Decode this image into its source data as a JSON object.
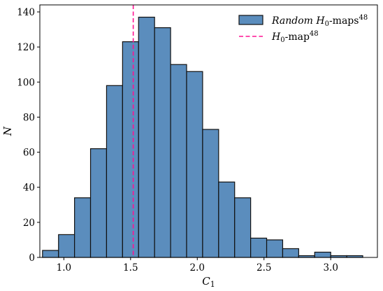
{
  "chart_data": {
    "type": "bar",
    "subtype": "histogram",
    "xlabel": "C",
    "xlabel_sub": "1",
    "ylabel": "N",
    "xlim": [
      0.82,
      3.35
    ],
    "ylim": [
      0,
      144
    ],
    "xticks": [
      1.0,
      1.5,
      2.0,
      2.5,
      3.0
    ],
    "xtick_labels": [
      "1.0",
      "1.5",
      "2.0",
      "2.5",
      "3.0"
    ],
    "yticks": [
      0,
      20,
      40,
      60,
      80,
      100,
      120,
      140
    ],
    "ytick_labels": [
      "0",
      "20",
      "40",
      "60",
      "80",
      "100",
      "120",
      "140"
    ],
    "bins": [
      {
        "x0": 0.84,
        "x1": 0.96,
        "count": 4
      },
      {
        "x0": 0.96,
        "x1": 1.08,
        "count": 13
      },
      {
        "x0": 1.08,
        "x1": 1.2,
        "count": 34
      },
      {
        "x0": 1.2,
        "x1": 1.32,
        "count": 62
      },
      {
        "x0": 1.32,
        "x1": 1.44,
        "count": 98
      },
      {
        "x0": 1.44,
        "x1": 1.56,
        "count": 123
      },
      {
        "x0": 1.56,
        "x1": 1.68,
        "count": 137
      },
      {
        "x0": 1.68,
        "x1": 1.8,
        "count": 131
      },
      {
        "x0": 1.8,
        "x1": 1.92,
        "count": 110
      },
      {
        "x0": 1.92,
        "x1": 2.04,
        "count": 106
      },
      {
        "x0": 2.04,
        "x1": 2.16,
        "count": 73
      },
      {
        "x0": 2.16,
        "x1": 2.28,
        "count": 43
      },
      {
        "x0": 2.28,
        "x1": 2.4,
        "count": 34
      },
      {
        "x0": 2.4,
        "x1": 2.52,
        "count": 11
      },
      {
        "x0": 2.52,
        "x1": 2.64,
        "count": 10
      },
      {
        "x0": 2.64,
        "x1": 2.76,
        "count": 5
      },
      {
        "x0": 2.76,
        "x1": 2.88,
        "count": 1
      },
      {
        "x0": 2.88,
        "x1": 3.0,
        "count": 3
      },
      {
        "x0": 3.0,
        "x1": 3.12,
        "count": 1
      },
      {
        "x0": 3.12,
        "x1": 3.24,
        "count": 1
      }
    ],
    "vline": {
      "x": 1.52
    },
    "legend": {
      "placement": "top-right",
      "hist_label_italic": "Random",
      "hist_label_main": "H",
      "hist_label_sub": "0",
      "hist_label_rest": "-maps",
      "hist_label_sup": "48",
      "line_label_main": "H",
      "line_label_sub": "0",
      "line_label_rest": "-map",
      "line_label_sup": "48"
    },
    "colors": {
      "bar_fill": "#5b8dbd",
      "bar_edge": "#111111",
      "vline": "#ff1493"
    }
  }
}
